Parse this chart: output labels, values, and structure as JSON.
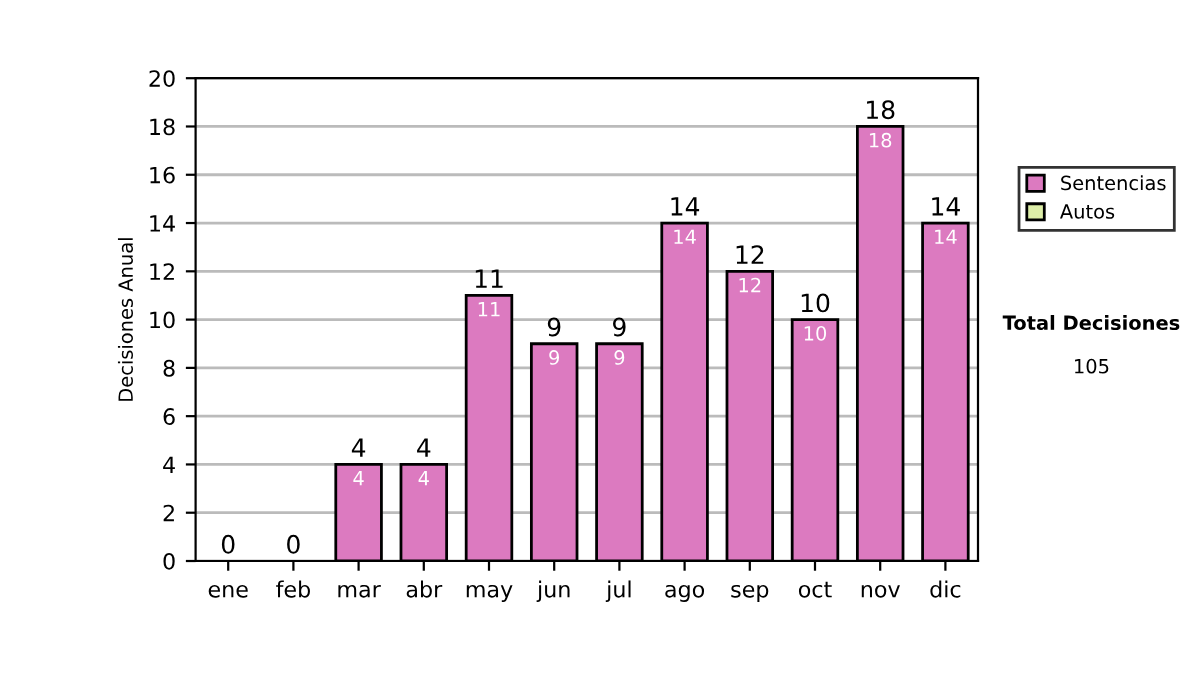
{
  "chart_data": {
    "type": "bar",
    "stacked": true,
    "ylabel": "Decisiones Anual",
    "categories": [
      "ene",
      "feb",
      "mar",
      "abr",
      "may",
      "jun",
      "jul",
      "ago",
      "sep",
      "oct",
      "nov",
      "dic"
    ],
    "series": [
      {
        "name": "Sentencias",
        "color": "#dc7ac0",
        "values": [
          0,
          0,
          4,
          4,
          11,
          9,
          9,
          14,
          12,
          10,
          18,
          14
        ],
        "value_labels": [
          null,
          null,
          "4",
          "4",
          "11",
          "9",
          "9",
          "14",
          "12",
          "10",
          "18",
          "14"
        ]
      },
      {
        "name": "Autos",
        "color": "#ddeea8",
        "values": [
          0,
          0,
          0,
          0,
          0,
          0,
          0,
          0,
          0,
          0,
          0,
          0
        ]
      }
    ],
    "totals": [
      "0",
      "0",
      "4",
      "4",
      "11",
      "9",
      "9",
      "14",
      "12",
      "10",
      "18",
      "14"
    ],
    "ylim": [
      0,
      20
    ],
    "yticks": [
      0,
      2,
      4,
      6,
      8,
      10,
      12,
      14,
      16,
      18,
      20
    ],
    "grid": "y",
    "legend": "right",
    "annotations": [
      "Total Decisiones",
      "105"
    ]
  }
}
